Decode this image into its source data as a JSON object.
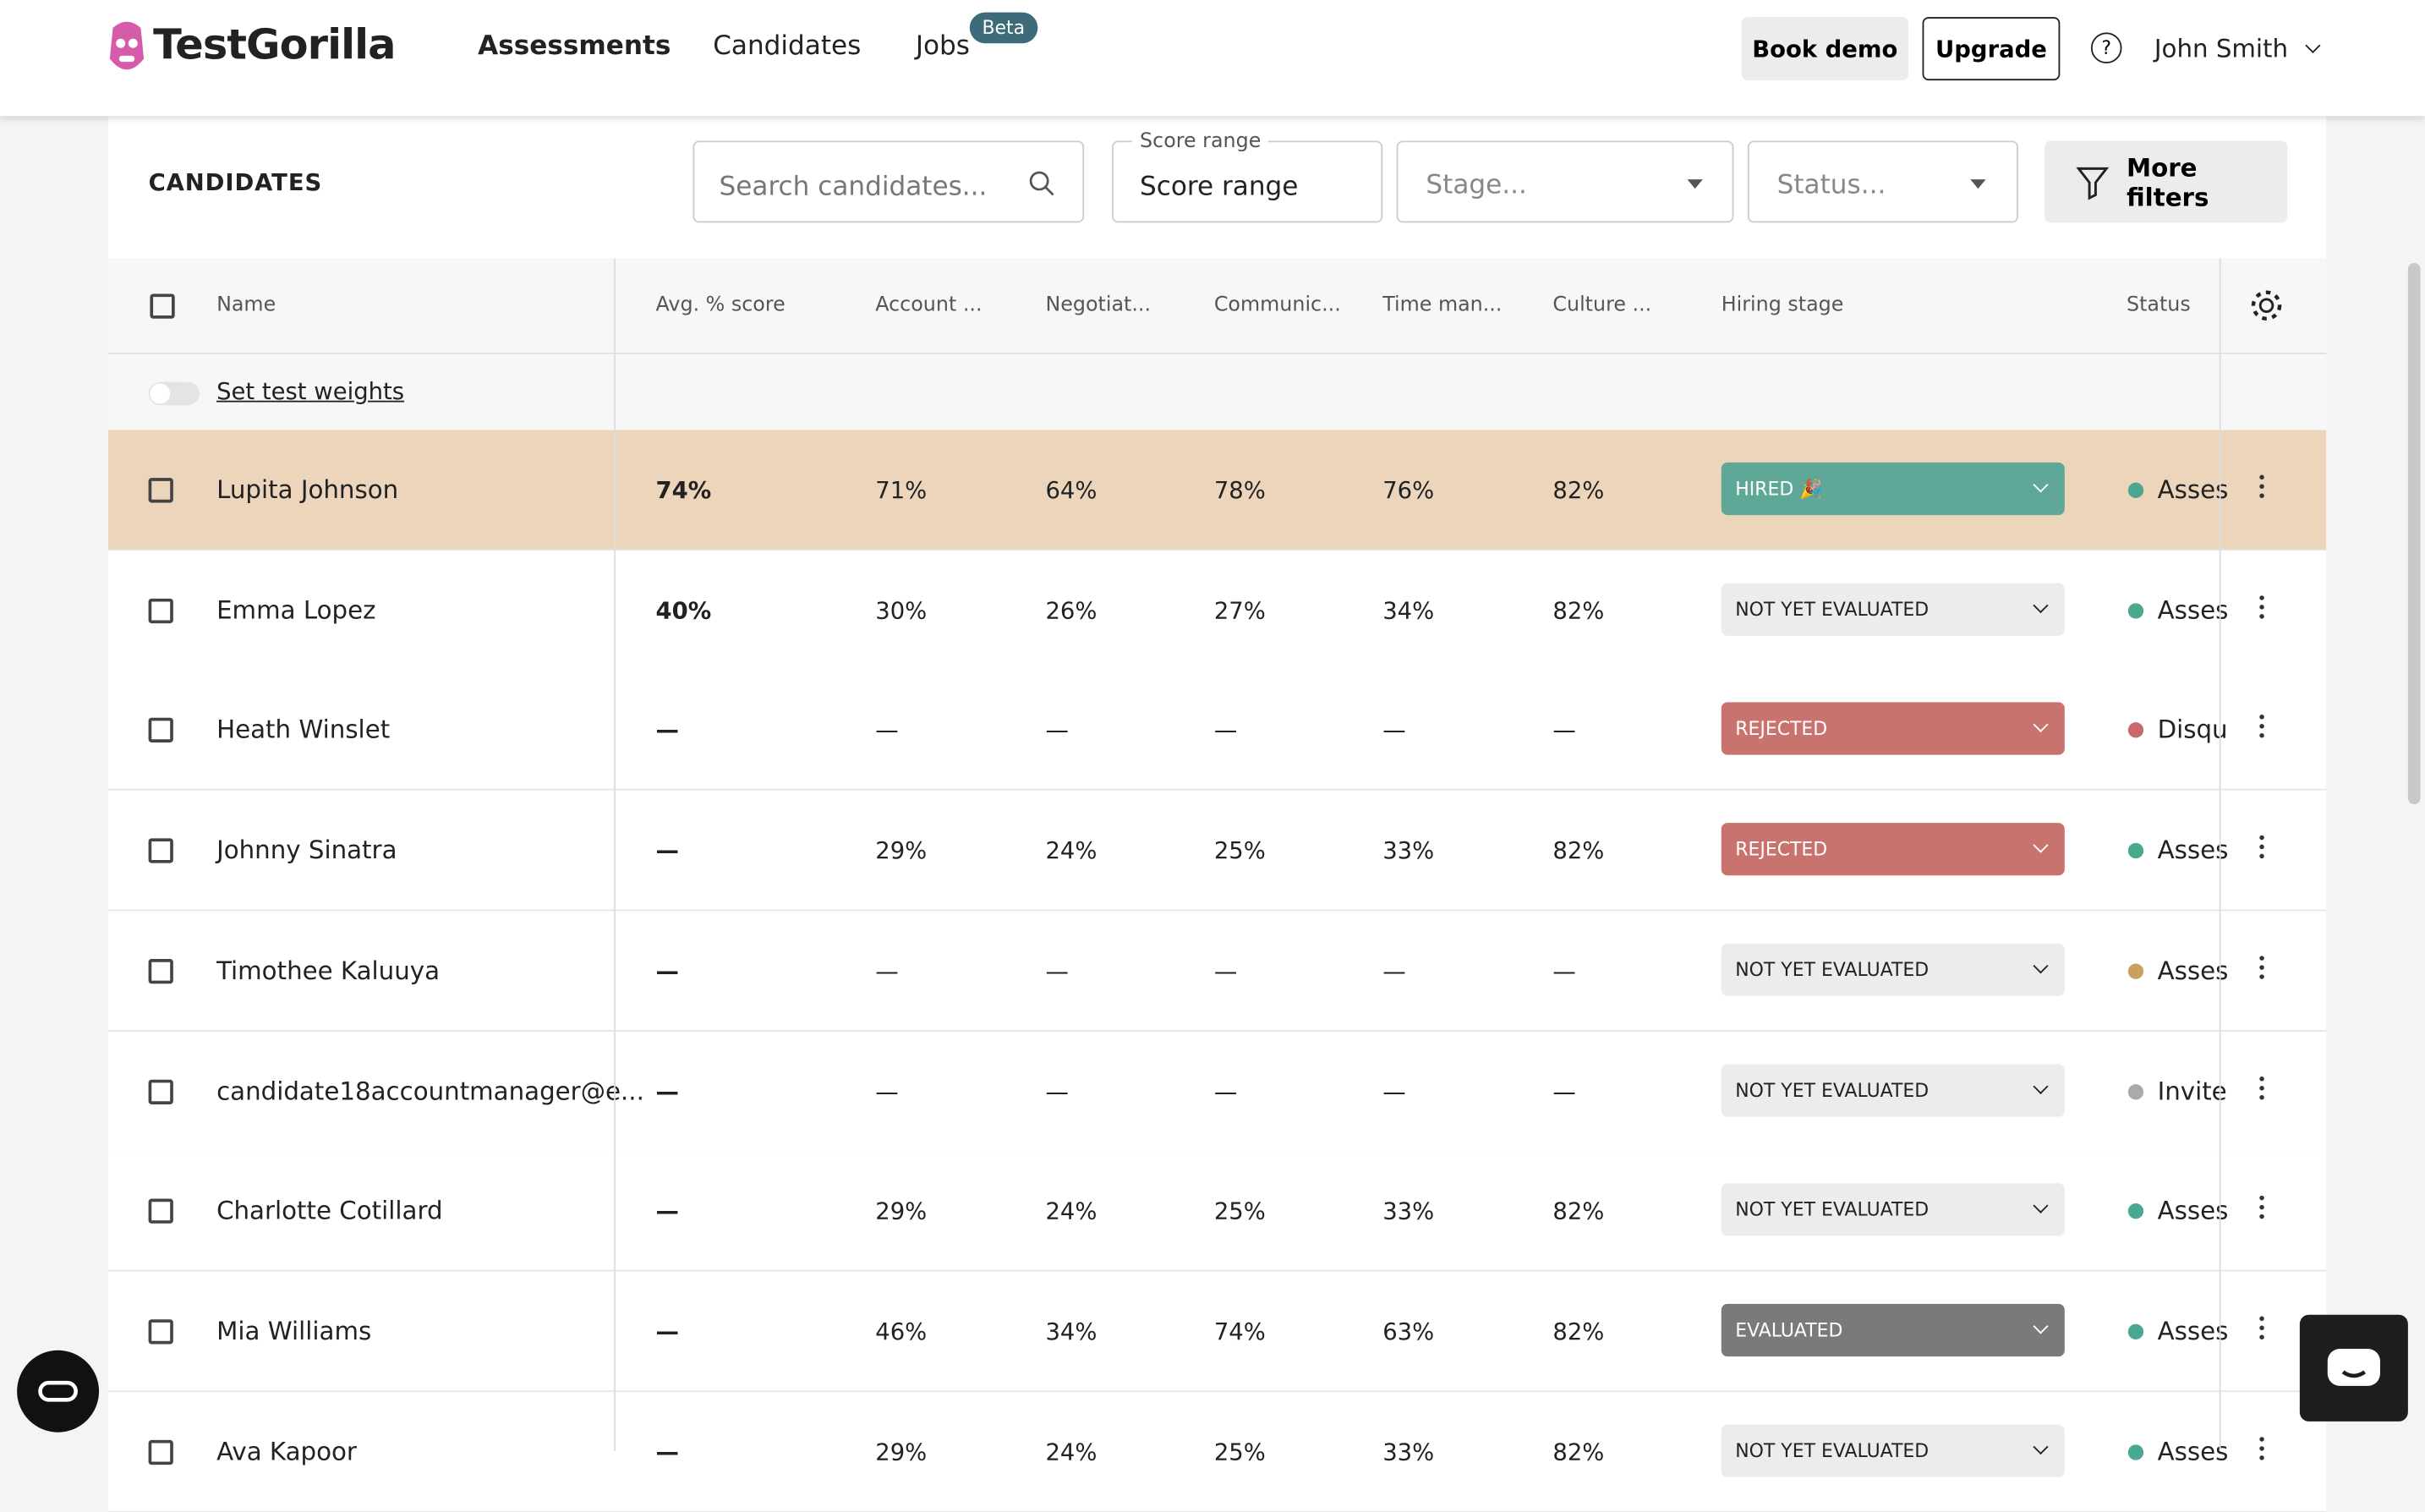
{
  "nav": {
    "logo": "TestGorilla",
    "links": [
      "Assessments",
      "Candidates",
      "Jobs"
    ],
    "badge": "Beta",
    "book_demo": "Book demo",
    "upgrade": "Upgrade",
    "user": "John Smith"
  },
  "toolbar": {
    "title": "CANDIDATES",
    "search_placeholder": "Search candidates...",
    "score_range_label": "Score range",
    "score_range_value": "Score range",
    "stage_placeholder": "Stage...",
    "status_placeholder": "Status...",
    "more_filters": "More filters"
  },
  "table": {
    "columns": [
      "Name",
      "Avg. % score",
      "Account ...",
      "Negotiat...",
      "Communic...",
      "Time man...",
      "Culture ...",
      "Hiring stage",
      "Status"
    ],
    "weights_link": "Set test weights",
    "rows": [
      {
        "name": "Lupita Johnson",
        "avg": "74%",
        "scores": [
          "71%",
          "64%",
          "78%",
          "76%",
          "82%"
        ],
        "stage": "HIRED 🎉",
        "stage_color": "#5fa898",
        "status": "Asses",
        "status_color": "#4aa891"
      },
      {
        "name": "Emma Lopez",
        "avg": "40%",
        "scores": [
          "30%",
          "26%",
          "27%",
          "34%",
          "82%"
        ],
        "stage": "NOT YET EVALUATED",
        "stage_color": "#ececec",
        "status": "Asses",
        "status_color": "#4aa891"
      },
      {
        "name": "Heath Winslet",
        "avg": "—",
        "scores": [
          "—",
          "—",
          "—",
          "—",
          "—"
        ],
        "stage": "REJECTED",
        "stage_color": "#c9736f",
        "status": "Disqu",
        "status_color": "#c9696b"
      },
      {
        "name": "Johnny Sinatra",
        "avg": "—",
        "scores": [
          "29%",
          "24%",
          "25%",
          "33%",
          "82%"
        ],
        "stage": "REJECTED",
        "stage_color": "#c9736f",
        "status": "Asses",
        "status_color": "#4aa891"
      },
      {
        "name": "Timothee Kaluuya",
        "avg": "—",
        "scores": [
          "—",
          "—",
          "—",
          "—",
          "—"
        ],
        "stage": "NOT YET EVALUATED",
        "stage_color": "#ececec",
        "status": "Asses",
        "status_color": "#c9a060"
      },
      {
        "name": "candidate18accountmanager@e...",
        "avg": "—",
        "scores": [
          "—",
          "—",
          "—",
          "—",
          "—"
        ],
        "stage": "NOT YET EVALUATED",
        "stage_color": "#ececec",
        "status": "Invite",
        "status_color": "#aaaaaa"
      },
      {
        "name": "Charlotte Cotillard",
        "avg": "—",
        "scores": [
          "29%",
          "24%",
          "25%",
          "33%",
          "82%"
        ],
        "stage": "NOT YET EVALUATED",
        "stage_color": "#ececec",
        "status": "Asses",
        "status_color": "#4aa891"
      },
      {
        "name": "Mia Williams",
        "avg": "—",
        "scores": [
          "46%",
          "34%",
          "74%",
          "63%",
          "82%"
        ],
        "stage": "EVALUATED",
        "stage_color": "#7a7a7a",
        "status": "Asses",
        "status_color": "#4aa891"
      },
      {
        "name": "Ava Kapoor",
        "avg": "—",
        "scores": [
          "29%",
          "24%",
          "25%",
          "33%",
          "82%"
        ],
        "stage": "NOT YET EVALUATED",
        "stage_color": "#ececec",
        "status": "Asses",
        "status_color": "#4aa891"
      }
    ]
  }
}
